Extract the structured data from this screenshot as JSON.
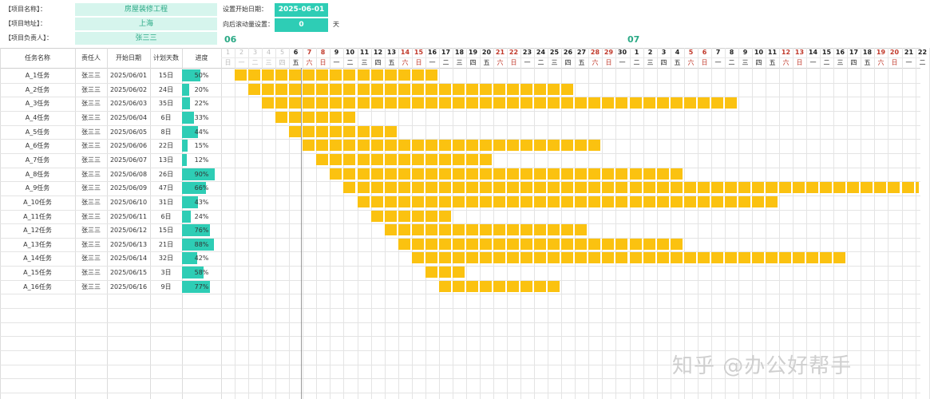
{
  "info": {
    "project_name_label": "【项目名称】：",
    "project_name": "房屋装修工程",
    "address_label": "【项目地址】：",
    "address": "上海",
    "owner_label": "【项目负责人】：",
    "owner": "张三三",
    "start_date_label": "设置开始日期：",
    "start_date": "2025-06-01",
    "scroll_label": "向后滚动量设置：",
    "scroll_value": "0",
    "scroll_unit": "天"
  },
  "months": [
    {
      "label": "06",
      "start_day_index": 0
    },
    {
      "label": "07",
      "start_day_index": 30
    }
  ],
  "columns": [
    "任务名称",
    "责任人",
    "开始日期",
    "计划天数",
    "进度"
  ],
  "colors": {
    "accent": "#2ecdb5",
    "mint": "#d6f5ed",
    "bar": "#fbc210",
    "weekend": "#c0392b"
  },
  "days": [
    {
      "d": "1",
      "w": "日"
    },
    {
      "d": "2",
      "w": "一"
    },
    {
      "d": "3",
      "w": "二"
    },
    {
      "d": "4",
      "w": "三"
    },
    {
      "d": "5",
      "w": "四"
    },
    {
      "d": "6",
      "w": "五"
    },
    {
      "d": "7",
      "w": "六"
    },
    {
      "d": "8",
      "w": "日"
    },
    {
      "d": "9",
      "w": "一"
    },
    {
      "d": "10",
      "w": "二"
    },
    {
      "d": "11",
      "w": "三"
    },
    {
      "d": "12",
      "w": "四"
    },
    {
      "d": "13",
      "w": "五"
    },
    {
      "d": "14",
      "w": "六"
    },
    {
      "d": "15",
      "w": "日"
    },
    {
      "d": "16",
      "w": "一"
    },
    {
      "d": "17",
      "w": "二"
    },
    {
      "d": "18",
      "w": "三"
    },
    {
      "d": "19",
      "w": "四"
    },
    {
      "d": "20",
      "w": "五"
    },
    {
      "d": "21",
      "w": "六"
    },
    {
      "d": "22",
      "w": "日"
    },
    {
      "d": "23",
      "w": "一"
    },
    {
      "d": "24",
      "w": "二"
    },
    {
      "d": "25",
      "w": "三"
    },
    {
      "d": "26",
      "w": "四"
    },
    {
      "d": "27",
      "w": "五"
    },
    {
      "d": "28",
      "w": "六"
    },
    {
      "d": "29",
      "w": "日"
    },
    {
      "d": "30",
      "w": "一"
    },
    {
      "d": "1",
      "w": "二"
    },
    {
      "d": "2",
      "w": "三"
    },
    {
      "d": "3",
      "w": "四"
    },
    {
      "d": "4",
      "w": "五"
    },
    {
      "d": "5",
      "w": "六"
    },
    {
      "d": "6",
      "w": "日"
    },
    {
      "d": "7",
      "w": "一"
    },
    {
      "d": "8",
      "w": "二"
    },
    {
      "d": "9",
      "w": "三"
    },
    {
      "d": "10",
      "w": "四"
    },
    {
      "d": "11",
      "w": "五"
    },
    {
      "d": "12",
      "w": "六"
    },
    {
      "d": "13",
      "w": "日"
    },
    {
      "d": "14",
      "w": "一"
    },
    {
      "d": "15",
      "w": "二"
    },
    {
      "d": "16",
      "w": "三"
    },
    {
      "d": "17",
      "w": "四"
    },
    {
      "d": "18",
      "w": "五"
    },
    {
      "d": "19",
      "w": "六"
    },
    {
      "d": "20",
      "w": "日"
    },
    {
      "d": "21",
      "w": "一"
    },
    {
      "d": "22",
      "w": "二"
    }
  ],
  "muted_days": 5,
  "tasks": [
    {
      "name": "A_1任务",
      "owner": "张三三",
      "start": "2025/06/01",
      "days": "15日",
      "progress": "50%",
      "pct": 50,
      "start_index": 0,
      "dur": 15
    },
    {
      "name": "A_2任务",
      "owner": "张三三",
      "start": "2025/06/02",
      "days": "24日",
      "progress": "20%",
      "pct": 20,
      "start_index": 1,
      "dur": 24
    },
    {
      "name": "A_3任务",
      "owner": "张三三",
      "start": "2025/06/03",
      "days": "35日",
      "progress": "22%",
      "pct": 22,
      "start_index": 2,
      "dur": 35
    },
    {
      "name": "A_4任务",
      "owner": "张三三",
      "start": "2025/06/04",
      "days": "6日",
      "progress": "33%",
      "pct": 33,
      "start_index": 3,
      "dur": 6
    },
    {
      "name": "A_5任务",
      "owner": "张三三",
      "start": "2025/06/05",
      "days": "8日",
      "progress": "44%",
      "pct": 44,
      "start_index": 4,
      "dur": 8
    },
    {
      "name": "A_6任务",
      "owner": "张三三",
      "start": "2025/06/06",
      "days": "22日",
      "progress": "15%",
      "pct": 15,
      "start_index": 5,
      "dur": 22
    },
    {
      "name": "A_7任务",
      "owner": "张三三",
      "start": "2025/06/07",
      "days": "13日",
      "progress": "12%",
      "pct": 12,
      "start_index": 6,
      "dur": 13
    },
    {
      "name": "A_8任务",
      "owner": "张三三",
      "start": "2025/06/08",
      "days": "26日",
      "progress": "90%",
      "pct": 90,
      "start_index": 7,
      "dur": 26
    },
    {
      "name": "A_9任务",
      "owner": "张三三",
      "start": "2025/06/09",
      "days": "47日",
      "progress": "66%",
      "pct": 66,
      "start_index": 8,
      "dur": 47
    },
    {
      "name": "A_10任务",
      "owner": "张三三",
      "start": "2025/06/10",
      "days": "31日",
      "progress": "43%",
      "pct": 43,
      "start_index": 9,
      "dur": 31
    },
    {
      "name": "A_11任务",
      "owner": "张三三",
      "start": "2025/06/11",
      "days": "6日",
      "progress": "24%",
      "pct": 24,
      "start_index": 10,
      "dur": 6
    },
    {
      "name": "A_12任务",
      "owner": "张三三",
      "start": "2025/06/12",
      "days": "15日",
      "progress": "76%",
      "pct": 76,
      "start_index": 11,
      "dur": 15
    },
    {
      "name": "A_13任务",
      "owner": "张三三",
      "start": "2025/06/13",
      "days": "21日",
      "progress": "88%",
      "pct": 88,
      "start_index": 12,
      "dur": 21
    },
    {
      "name": "A_14任务",
      "owner": "张三三",
      "start": "2025/06/14",
      "days": "32日",
      "progress": "42%",
      "pct": 42,
      "start_index": 13,
      "dur": 32
    },
    {
      "name": "A_15任务",
      "owner": "张三三",
      "start": "2025/06/15",
      "days": "3日",
      "progress": "58%",
      "pct": 58,
      "start_index": 14,
      "dur": 3
    },
    {
      "name": "A_16任务",
      "owner": "张三三",
      "start": "2025/06/16",
      "days": "9日",
      "progress": "77%",
      "pct": 77,
      "start_index": 15,
      "dur": 9
    }
  ],
  "watermark": "知乎 @办公好帮手"
}
